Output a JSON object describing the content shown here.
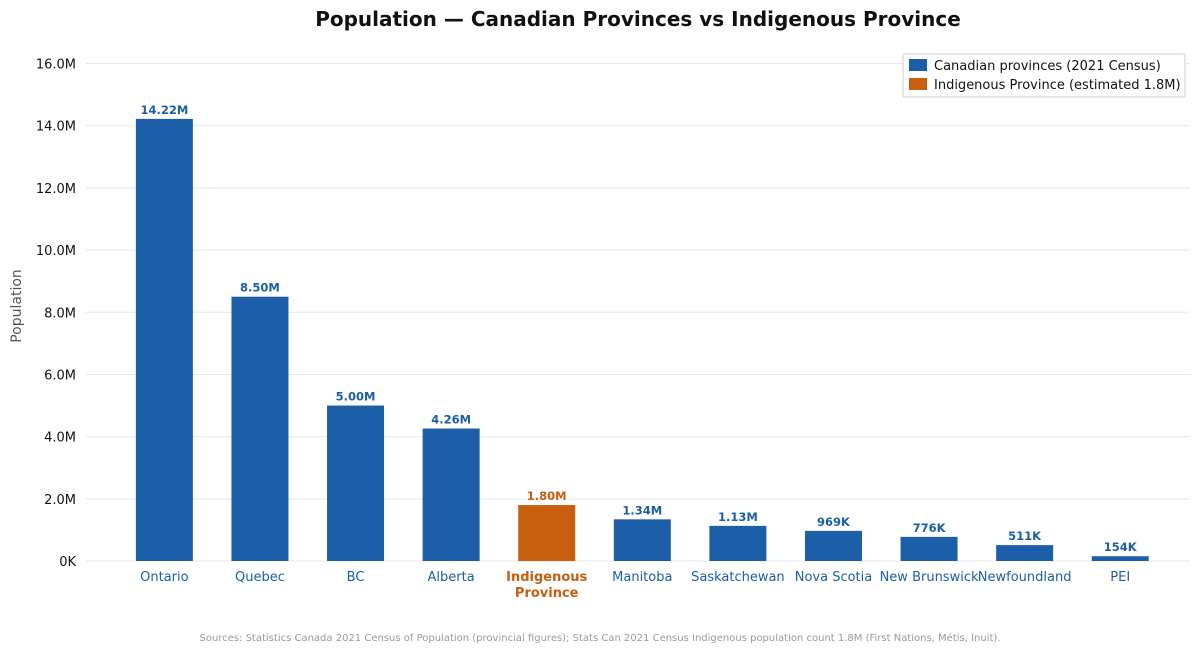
{
  "chart_data": {
    "type": "bar",
    "title": "Population — Canadian Provinces vs Indigenous Province",
    "xlabel": "",
    "ylabel": "Population",
    "ylim": [
      0,
      16500000
    ],
    "yticks": [
      0,
      2000000,
      4000000,
      6000000,
      8000000,
      10000000,
      12000000,
      14000000,
      16000000
    ],
    "ytick_labels": [
      "0K",
      "2.0M",
      "4.0M",
      "6.0M",
      "8.0M",
      "10.0M",
      "12.0M",
      "14.0M",
      "16.0M"
    ],
    "grid": true,
    "legend_position": "top-right",
    "categories": [
      "Ontario",
      "Quebec",
      "BC",
      "Alberta",
      "Indigenous Province",
      "Manitoba",
      "Saskatchewan",
      "Nova Scotia",
      "New Brunswick",
      "Newfoundland",
      "PEI"
    ],
    "category_lines": [
      [
        "Ontario"
      ],
      [
        "Quebec"
      ],
      [
        "BC"
      ],
      [
        "Alberta"
      ],
      [
        "Indigenous",
        "Province"
      ],
      [
        "Manitoba"
      ],
      [
        "Saskatchewan"
      ],
      [
        "Nova Scotia"
      ],
      [
        "New Brunswick"
      ],
      [
        "Newfoundland"
      ],
      [
        "PEI"
      ]
    ],
    "values": [
      14220000,
      8500000,
      5000000,
      4260000,
      1800000,
      1340000,
      1130000,
      969000,
      776000,
      511000,
      154000
    ],
    "data_labels": [
      "14.22M",
      "8.50M",
      "5.00M",
      "4.26M",
      "1.80M",
      "1.34M",
      "1.13M",
      "969K",
      "776K",
      "511K",
      "154K"
    ],
    "highlight_index": 4,
    "series": [
      {
        "name": "Canadian provinces (2021 Census)",
        "color": "#1c5ea8"
      },
      {
        "name": "Indigenous Province (estimated 1.8M)",
        "color": "#c75f0e"
      }
    ],
    "source_note": "Sources: Statistics Canada 2021 Census of Population (provincial figures); Stats Can 2021 Census Indigenous population count 1.8M (First Nations, Métis, Inuit)."
  },
  "colors": {
    "canadian": "#1c5ea8",
    "indigenous": "#c75f0e",
    "grid": "#e8e8e8"
  }
}
